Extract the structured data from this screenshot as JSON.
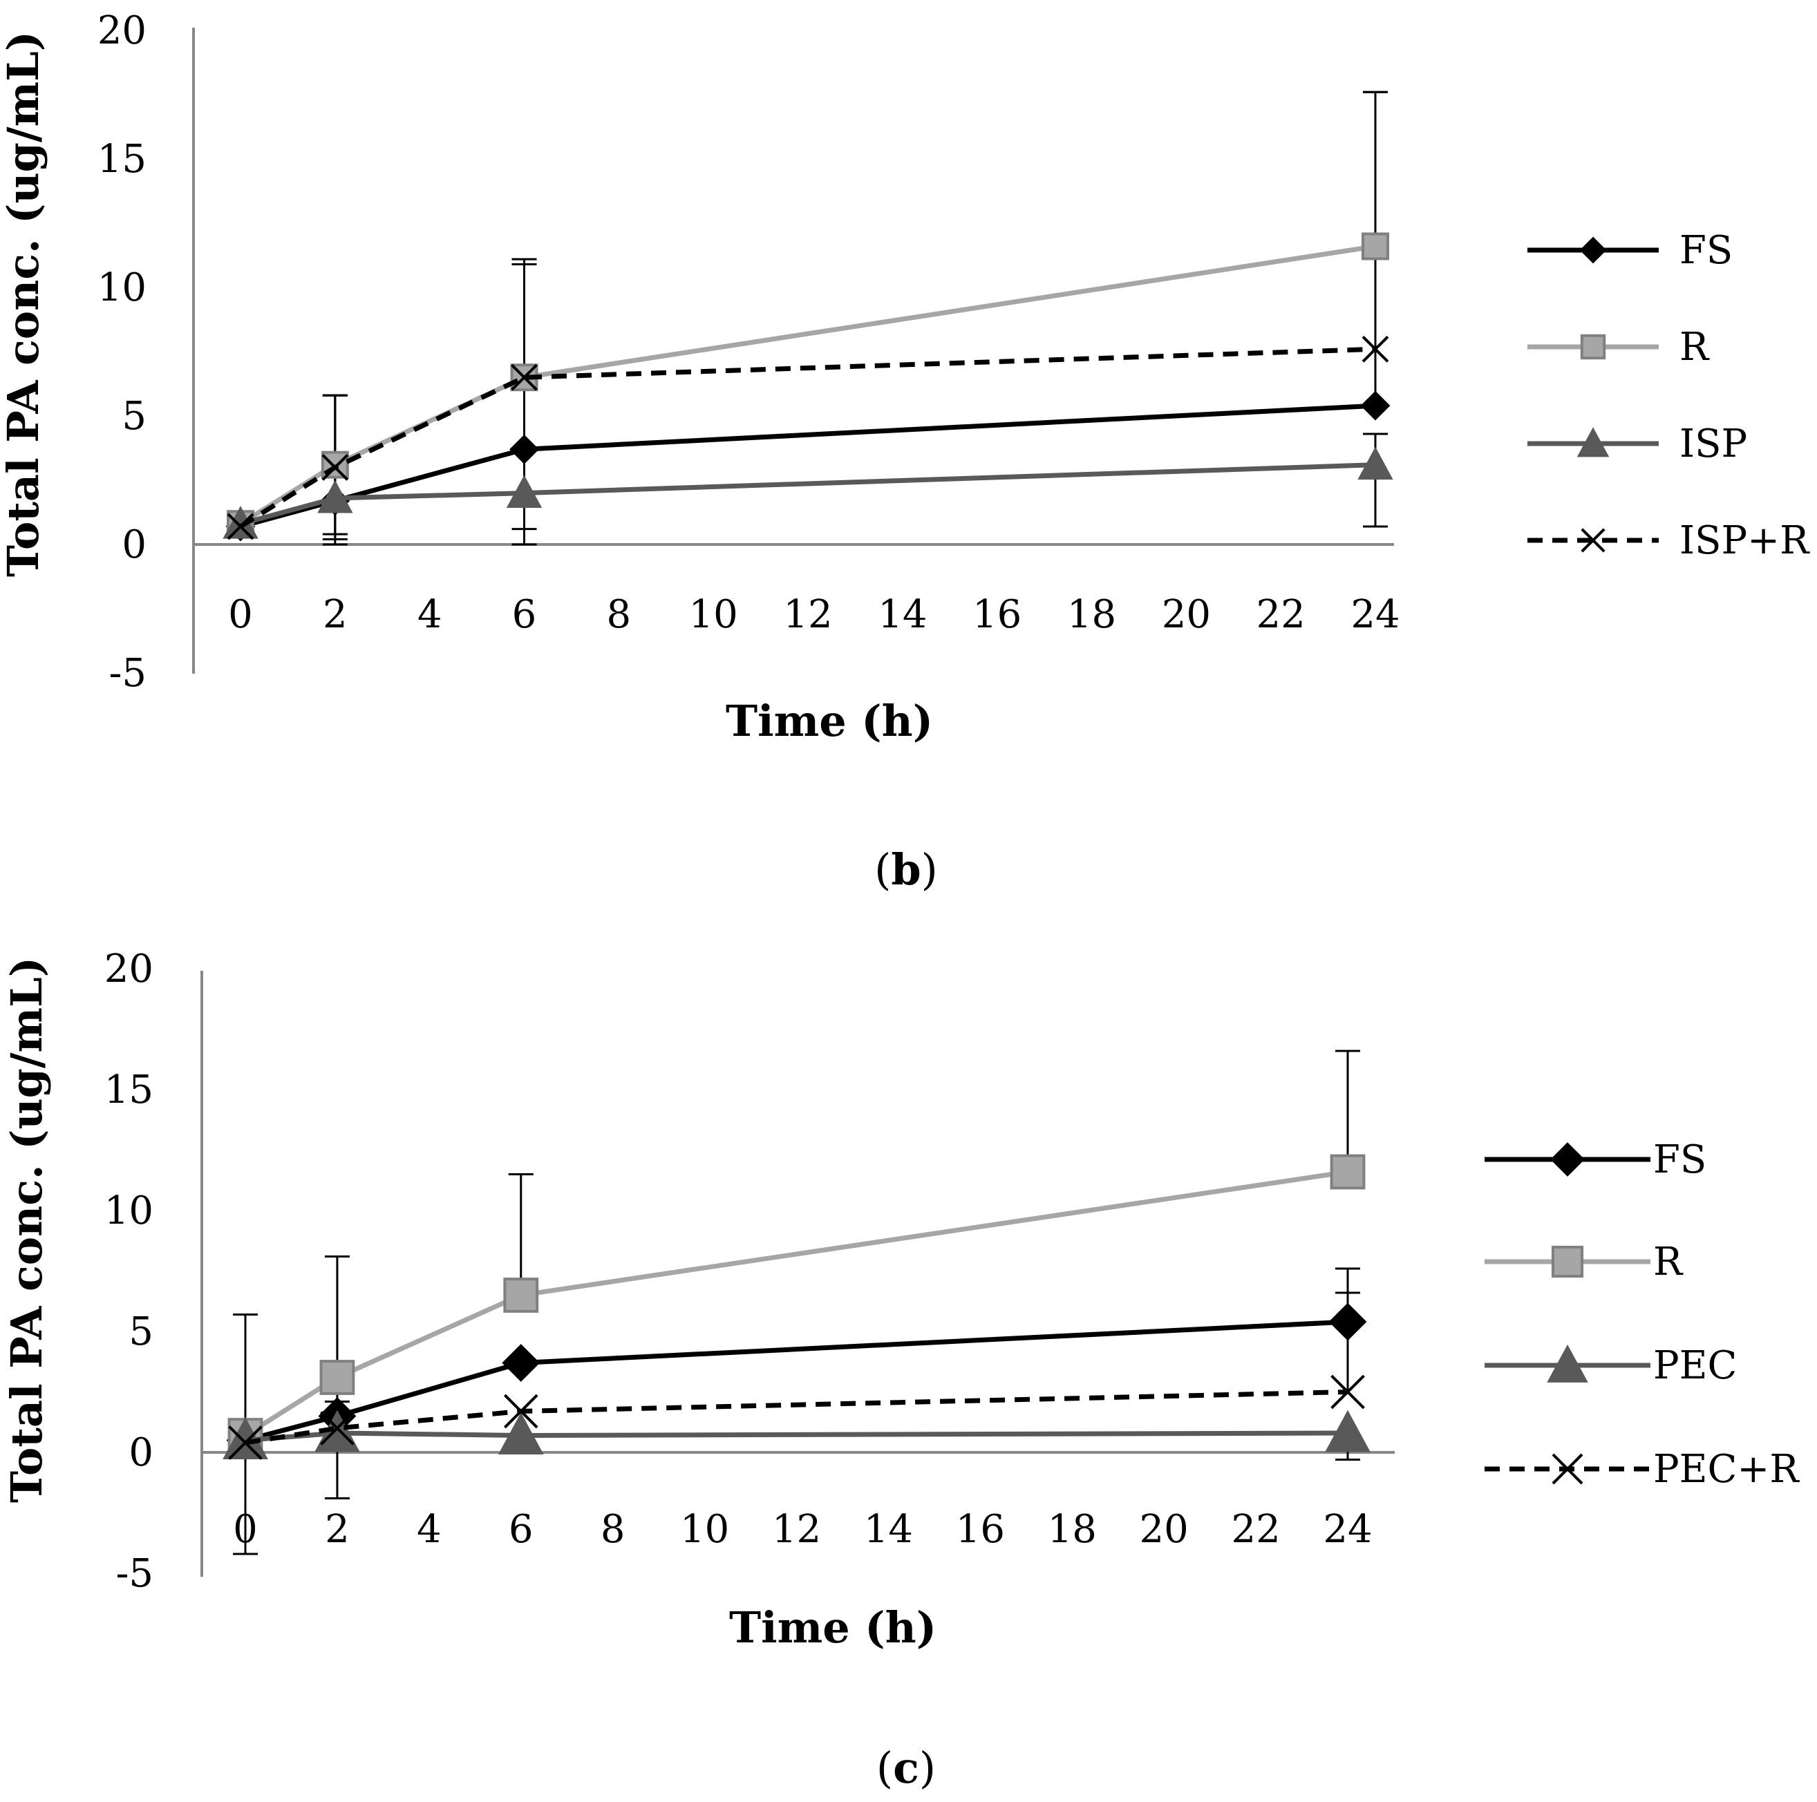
{
  "chart_data": [
    {
      "type": "line",
      "panel": "b",
      "xlabel": "Time (h)",
      "ylabel": "Total PA conc. (ug/mL)",
      "ylim": [
        -5,
        20
      ],
      "yticks": [
        20,
        15,
        10,
        5,
        0,
        -5
      ],
      "xticks": [
        0,
        2,
        4,
        6,
        8,
        10,
        12,
        14,
        16,
        18,
        20,
        22,
        24
      ],
      "grid": false,
      "legend_position": "right",
      "x": [
        0,
        2,
        6,
        24
      ],
      "series": [
        {
          "name": "FS",
          "marker": "diamond",
          "color": "#000000",
          "dash": false,
          "values": [
            0.7,
            1.7,
            3.7,
            5.4
          ],
          "err_x": [
            2,
            6,
            24
          ],
          "err_plus": [
            4.1,
            7.4,
            12.2
          ],
          "err_minus": [
            0,
            0,
            0
          ]
        },
        {
          "name": "R",
          "marker": "square",
          "color": "#a6a6a6",
          "dash": false,
          "values": [
            0.8,
            3.1,
            6.5,
            11.6
          ],
          "err_x": [
            2,
            6,
            24
          ],
          "err_plus": [
            2.7,
            4.4,
            6.0
          ],
          "err_minus": [
            3.1,
            6.5,
            0
          ]
        },
        {
          "name": "ISP",
          "marker": "triangle",
          "color": "#595959",
          "dash": false,
          "values": [
            0.8,
            1.8,
            2.0,
            3.1
          ],
          "err_x": [
            2,
            6,
            24
          ],
          "err_plus": [
            0,
            0,
            1.2
          ],
          "err_minus": [
            1.4,
            1.4,
            2.4
          ]
        },
        {
          "name": "ISP+R",
          "marker": "x",
          "color": "#000000",
          "dash": true,
          "values": [
            0.7,
            3.0,
            6.5,
            7.6
          ],
          "err_x": [
            2,
            6,
            24
          ],
          "err_plus": [
            2.8,
            4.4,
            0
          ],
          "err_minus": [
            2.8,
            6.5,
            0
          ]
        }
      ]
    },
    {
      "type": "line",
      "panel": "c",
      "xlabel": "Time (h)",
      "ylabel": "Total PA conc. (ug/mL)",
      "ylim": [
        -5,
        20
      ],
      "yticks": [
        20,
        15,
        10,
        5,
        0,
        -5
      ],
      "xticks": [
        0,
        2,
        4,
        6,
        8,
        10,
        12,
        14,
        16,
        18,
        20,
        22,
        24
      ],
      "grid": false,
      "legend_position": "right",
      "x": [
        0,
        2,
        6,
        24
      ],
      "series": [
        {
          "name": "FS",
          "marker": "diamond",
          "color": "#000000",
          "dash": false,
          "values": [
            0.5,
            1.5,
            3.7,
            5.4
          ],
          "err_x": [
            2,
            6,
            24
          ],
          "err_plus": [
            0.6,
            0,
            1.2
          ],
          "err_minus": [
            0,
            0,
            0
          ]
        },
        {
          "name": "R",
          "marker": "square",
          "color": "#a6a6a6",
          "dash": false,
          "values": [
            0.7,
            3.1,
            6.5,
            11.6
          ],
          "err_x": [
            2,
            6,
            24
          ],
          "err_plus": [
            5.0,
            5.0,
            5.0
          ],
          "err_minus": [
            5.0,
            0,
            0
          ]
        },
        {
          "name": "PEC",
          "marker": "triangle",
          "color": "#595959",
          "dash": false,
          "values": [
            0.5,
            0.8,
            0.7,
            0.8
          ],
          "err_x": [
            0,
            24
          ],
          "err_plus": [
            5.2,
            0
          ],
          "err_minus": [
            4.7,
            1.1
          ]
        },
        {
          "name": "PEC+R",
          "marker": "x",
          "color": "#000000",
          "dash": true,
          "values": [
            0.4,
            1.0,
            1.7,
            2.5
          ],
          "err_x": [
            24
          ],
          "err_plus": [
            5.1
          ],
          "err_minus": [
            0
          ]
        }
      ]
    }
  ],
  "captions": [
    {
      "open": "(",
      "letter": "b",
      "close": ")"
    },
    {
      "open": "(",
      "letter": "c",
      "close": ")"
    }
  ]
}
